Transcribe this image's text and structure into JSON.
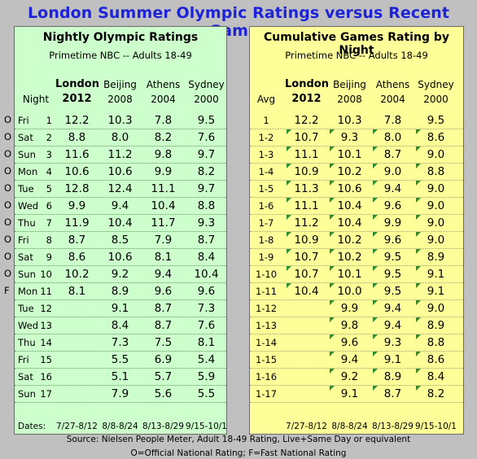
{
  "title": "London Summer Olympic Ratings versus Recent Games",
  "left_panel": {
    "title": "Nightly Olympic Ratings",
    "subtitle": "Primetime NBC -- Adults 18-49",
    "label_header": "Night",
    "columns": [
      {
        "city": "London",
        "year": "2012",
        "bold": true
      },
      {
        "city": "Beijing",
        "year": "2008"
      },
      {
        "city": "Athens",
        "year": "2004"
      },
      {
        "city": "Sydney",
        "year": "2000"
      }
    ],
    "rows": [
      {
        "flag": "O",
        "day": "Fri",
        "n": "1",
        "v": [
          "12.2",
          "10.3",
          "7.8",
          "9.5"
        ]
      },
      {
        "flag": "O",
        "day": "Sat",
        "n": "2",
        "v": [
          "8.8",
          "8.0",
          "8.2",
          "7.6"
        ]
      },
      {
        "flag": "O",
        "day": "Sun",
        "n": "3",
        "v": [
          "11.6",
          "11.2",
          "9.8",
          "9.7"
        ]
      },
      {
        "flag": "O",
        "day": "Mon",
        "n": "4",
        "v": [
          "10.6",
          "10.6",
          "9.9",
          "8.2"
        ]
      },
      {
        "flag": "O",
        "day": "Tue",
        "n": "5",
        "v": [
          "12.8",
          "12.4",
          "11.1",
          "9.7"
        ]
      },
      {
        "flag": "O",
        "day": "Wed",
        "n": "6",
        "v": [
          "9.9",
          "9.4",
          "10.4",
          "8.8"
        ]
      },
      {
        "flag": "O",
        "day": "Thu",
        "n": "7",
        "v": [
          "11.9",
          "10.4",
          "11.7",
          "9.3"
        ]
      },
      {
        "flag": "O",
        "day": "Fri",
        "n": "8",
        "v": [
          "8.7",
          "8.5",
          "7.9",
          "8.7"
        ]
      },
      {
        "flag": "O",
        "day": "Sat",
        "n": "9",
        "v": [
          "8.6",
          "10.6",
          "8.1",
          "8.4"
        ]
      },
      {
        "flag": "O",
        "day": "Sun",
        "n": "10",
        "v": [
          "10.2",
          "9.2",
          "9.4",
          "10.4"
        ]
      },
      {
        "flag": "F",
        "day": "Mon",
        "n": "11",
        "v": [
          "8.1",
          "8.9",
          "9.6",
          "9.6"
        ]
      },
      {
        "flag": "",
        "day": "Tue",
        "n": "12",
        "v": [
          "",
          "9.1",
          "8.7",
          "7.3"
        ]
      },
      {
        "flag": "",
        "day": "Wed",
        "n": "13",
        "v": [
          "",
          "8.4",
          "8.7",
          "7.6"
        ]
      },
      {
        "flag": "",
        "day": "Thu",
        "n": "14",
        "v": [
          "",
          "7.3",
          "7.5",
          "8.1"
        ]
      },
      {
        "flag": "",
        "day": "Fri",
        "n": "15",
        "v": [
          "",
          "5.5",
          "6.9",
          "5.4"
        ]
      },
      {
        "flag": "",
        "day": "Sat",
        "n": "16",
        "v": [
          "",
          "5.1",
          "5.7",
          "5.9"
        ]
      },
      {
        "flag": "",
        "day": "Sun",
        "n": "17",
        "v": [
          "",
          "7.9",
          "5.6",
          "5.5"
        ]
      }
    ],
    "dates_label": "Dates:",
    "dates": [
      "7/27-8/12",
      "8/8-8/24",
      "8/13-8/29",
      "9/15-10/1"
    ]
  },
  "right_panel": {
    "title": "Cumulative Games Rating by Night",
    "subtitle": "Primetime NBC -- Adults 18-49",
    "label_header": "Avg",
    "columns": [
      {
        "city": "London",
        "year": "2012",
        "bold": true
      },
      {
        "city": "Beijing",
        "year": "2008"
      },
      {
        "city": "Athens",
        "year": "2004"
      },
      {
        "city": "Sydney",
        "year": "2000"
      }
    ],
    "rows": [
      {
        "n": "1",
        "v": [
          "12.2",
          "10.3",
          "7.8",
          "9.5"
        ]
      },
      {
        "n": "1-2",
        "v": [
          "10.7",
          "9.3",
          "8.0",
          "8.6"
        ]
      },
      {
        "n": "1-3",
        "v": [
          "11.1",
          "10.1",
          "8.7",
          "9.0"
        ]
      },
      {
        "n": "1-4",
        "v": [
          "10.9",
          "10.2",
          "9.0",
          "8.8"
        ]
      },
      {
        "n": "1-5",
        "v": [
          "11.3",
          "10.6",
          "9.4",
          "9.0"
        ]
      },
      {
        "n": "1-6",
        "v": [
          "11.1",
          "10.4",
          "9.6",
          "9.0"
        ]
      },
      {
        "n": "1-7",
        "v": [
          "11.2",
          "10.4",
          "9.9",
          "9.0"
        ]
      },
      {
        "n": "1-8",
        "v": [
          "10.9",
          "10.2",
          "9.6",
          "9.0"
        ]
      },
      {
        "n": "1-9",
        "v": [
          "10.7",
          "10.2",
          "9.5",
          "8.9"
        ]
      },
      {
        "n": "1-10",
        "v": [
          "10.7",
          "10.1",
          "9.5",
          "9.1"
        ]
      },
      {
        "n": "1-11",
        "v": [
          "10.4",
          "10.0",
          "9.5",
          "9.1"
        ]
      },
      {
        "n": "1-12",
        "v": [
          "",
          "9.9",
          "9.4",
          "9.0"
        ]
      },
      {
        "n": "1-13",
        "v": [
          "",
          "9.8",
          "9.4",
          "8.9"
        ]
      },
      {
        "n": "1-14",
        "v": [
          "",
          "9.6",
          "9.3",
          "8.8"
        ]
      },
      {
        "n": "1-15",
        "v": [
          "",
          "9.4",
          "9.1",
          "8.6"
        ]
      },
      {
        "n": "1-16",
        "v": [
          "",
          "9.2",
          "8.9",
          "8.4"
        ]
      },
      {
        "n": "1-17",
        "v": [
          "",
          "9.1",
          "8.7",
          "8.2"
        ]
      }
    ],
    "dates": [
      "7/27-8/12",
      "8/8-8/24",
      "8/13-8/29",
      "9/15-10/1"
    ]
  },
  "footer": {
    "source": "Source: Nielsen People Meter, Adult 18-49 Rating, Live+Same Day or equivalent",
    "legend": "O=Official National Rating; F=Fast National Rating"
  },
  "colors": {
    "title": "#1e24d6",
    "left_panel": "#ccffcc",
    "right_panel": "#ffff99",
    "background": "#c0c0c0",
    "corner_mark": "#2f8f2f"
  }
}
